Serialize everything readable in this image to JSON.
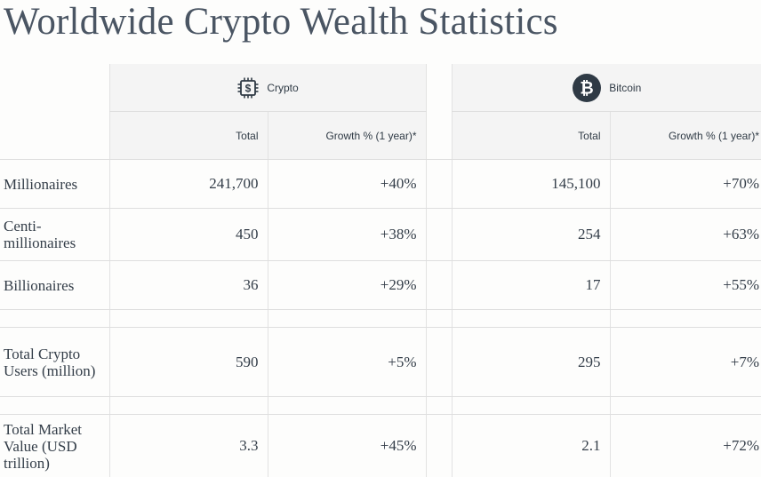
{
  "title": "Worldwide Crypto Wealth Statistics",
  "groups": {
    "crypto": {
      "label": "Crypto",
      "icon": "chip-dollar-icon"
    },
    "bitcoin": {
      "label": "Bitcoin",
      "icon": "bitcoin-icon"
    }
  },
  "subheaders": {
    "total": "Total",
    "growth": "Growth % (1 year)*"
  },
  "rows": [
    {
      "label": "Millionaires",
      "crypto_total": "241,700",
      "crypto_growth": "+40%",
      "bitcoin_total": "145,100",
      "bitcoin_growth": "+70%"
    },
    {
      "label": "Centi-millionaires",
      "crypto_total": "450",
      "crypto_growth": "+38%",
      "bitcoin_total": "254",
      "bitcoin_growth": "+63%"
    },
    {
      "label": "Billionaires",
      "crypto_total": "36",
      "crypto_growth": "+29%",
      "bitcoin_total": "17",
      "bitcoin_growth": "+55%"
    },
    {
      "label": "Total Crypto Users (million)",
      "crypto_total": "590",
      "crypto_growth": "+5%",
      "bitcoin_total": "295",
      "bitcoin_growth": "+7%"
    },
    {
      "label": "Total Market Value (USD trillion)",
      "crypto_total": "3.3",
      "crypto_growth": "+45%",
      "bitcoin_total": "2.1",
      "bitcoin_growth": "+72%"
    }
  ],
  "colors": {
    "bitcoin_badge": "#2f3a45",
    "text": "#2f3a45",
    "cell_shade": "#f4f4f4"
  }
}
